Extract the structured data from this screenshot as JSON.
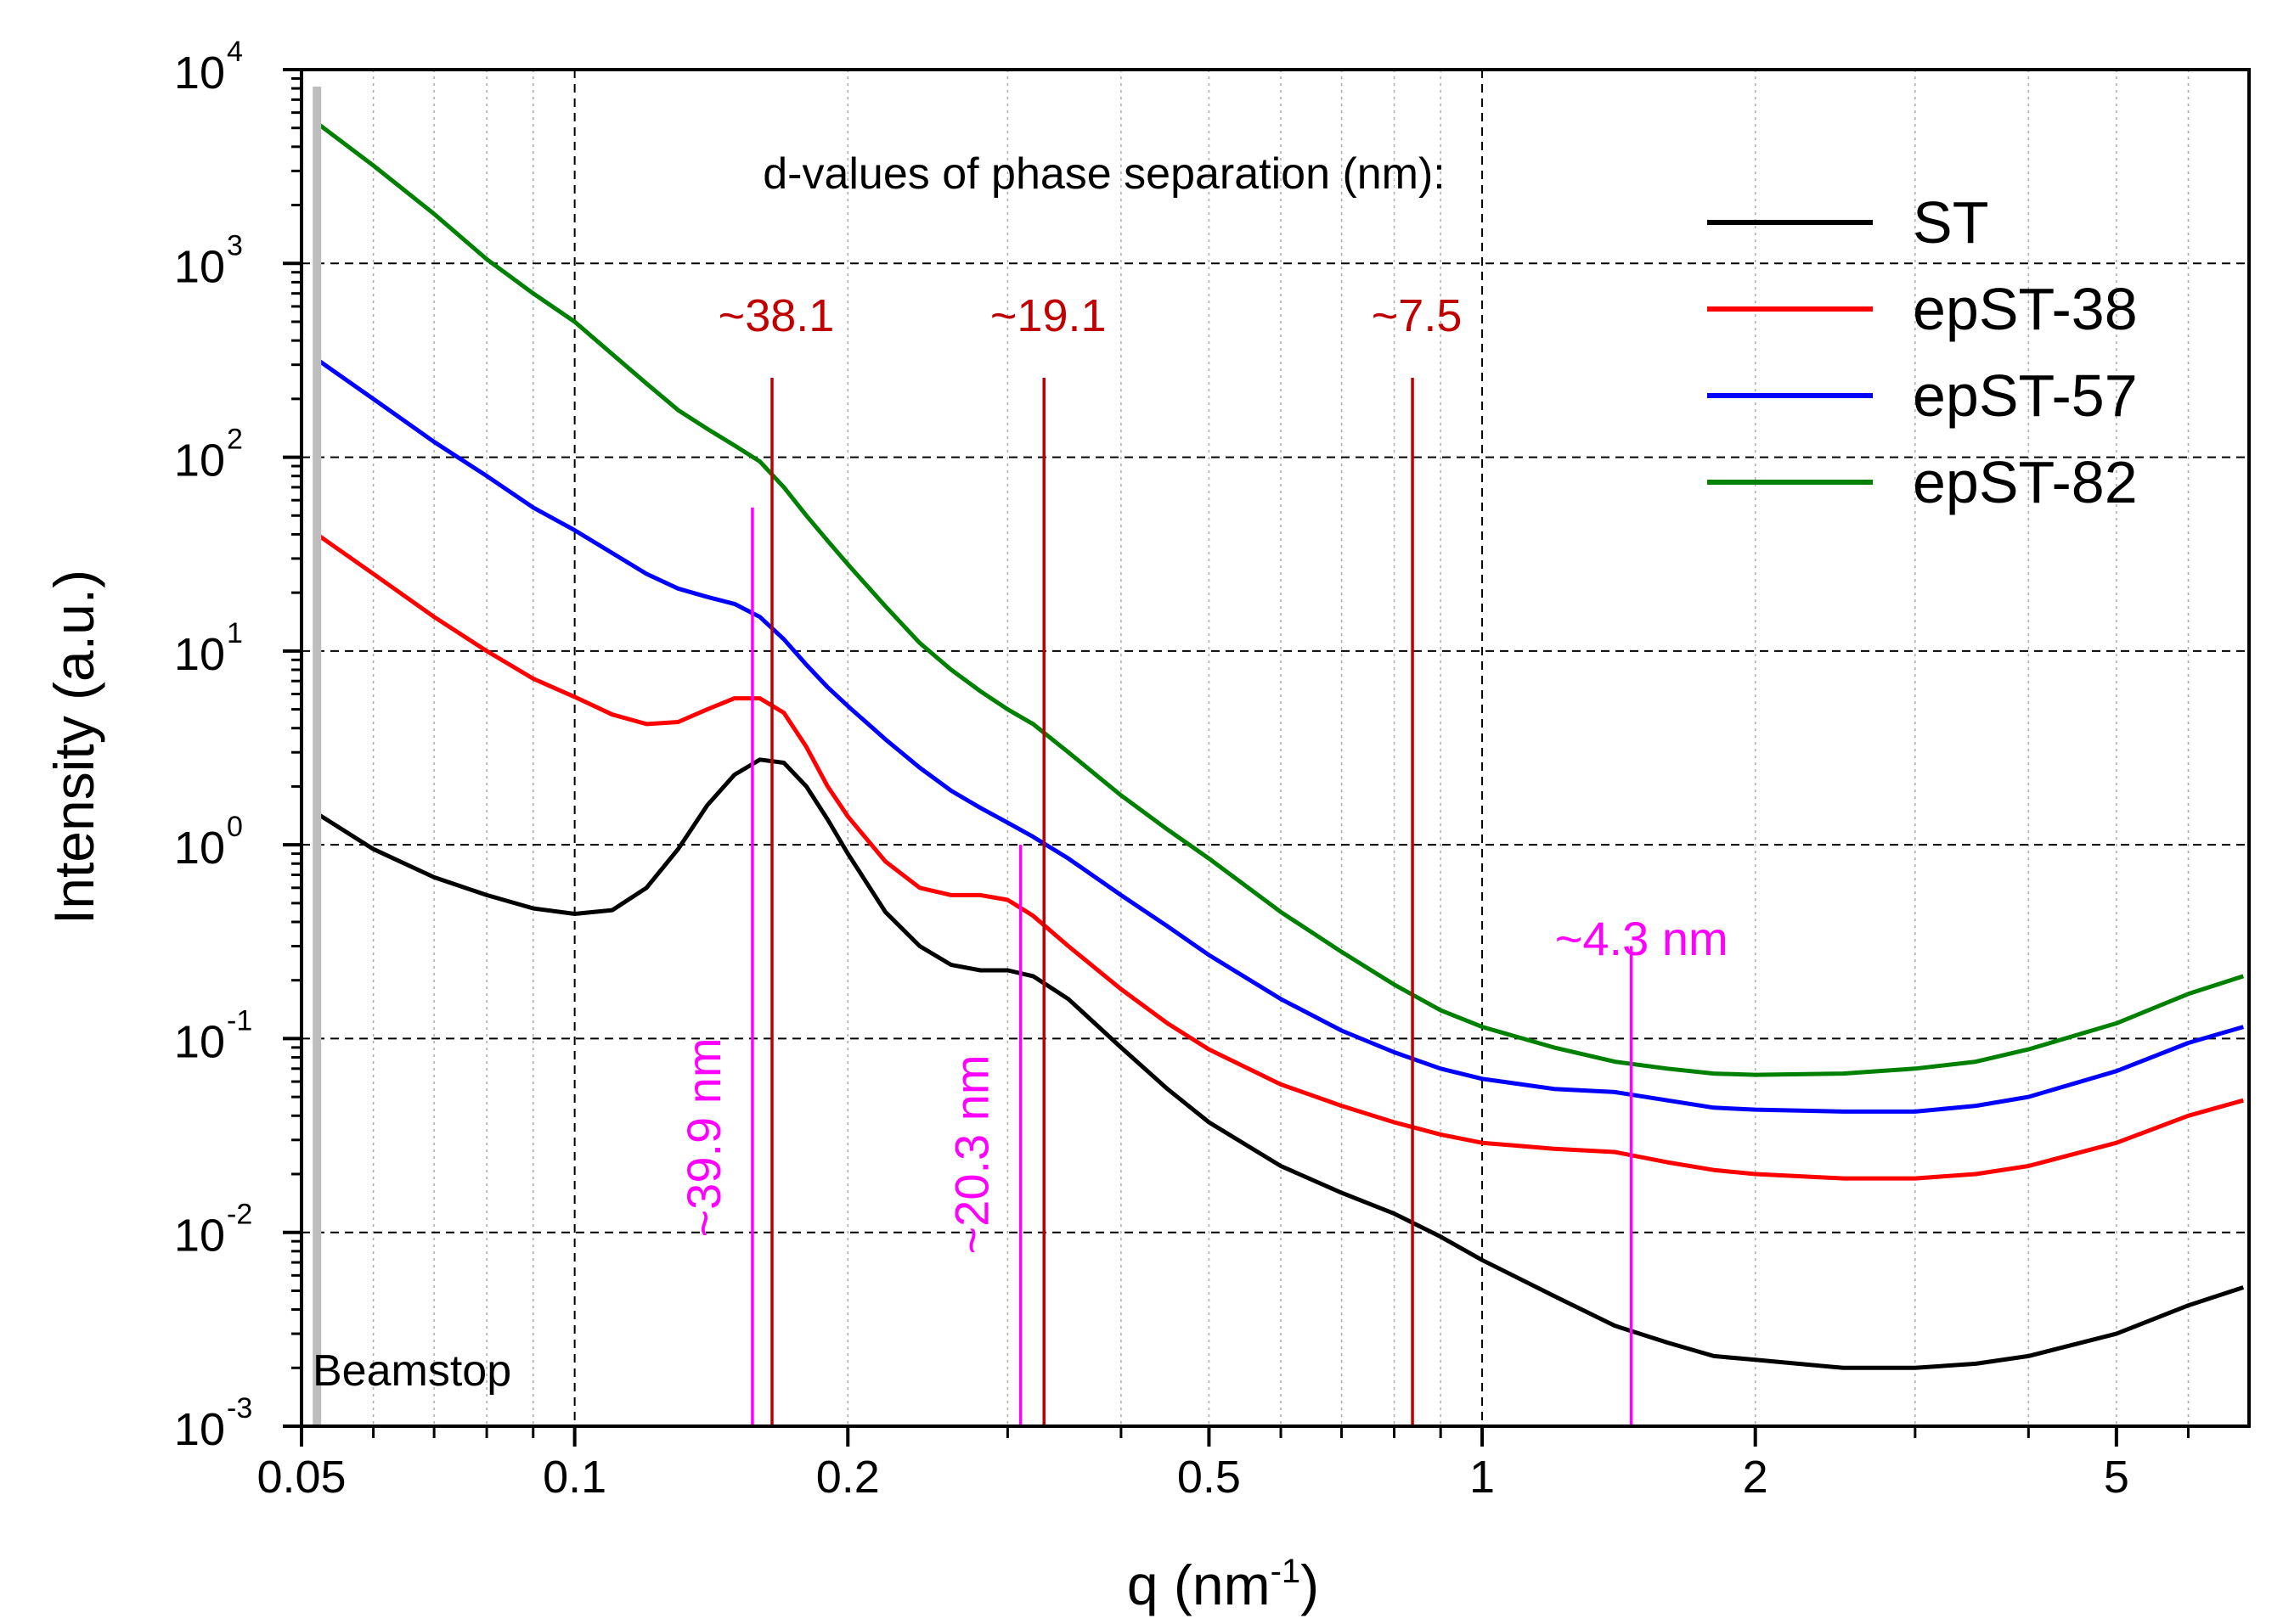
{
  "chart_data": {
    "type": "line",
    "xscale": "log",
    "yscale": "log",
    "xlim": [
      0.05,
      7.0
    ],
    "ylim": [
      0.001,
      10000
    ],
    "xlabel": "q (nm",
    "xlabel_sup": "-1",
    "xlabel_end": ")",
    "ylabel": "Intensity (a.u.)",
    "x_ticks": [
      {
        "value": 0.05,
        "label": "0.05"
      },
      {
        "value": 0.1,
        "label": "0.1"
      },
      {
        "value": 0.2,
        "label": "0.2"
      },
      {
        "value": 0.5,
        "label": "0.5"
      },
      {
        "value": 1,
        "label": "1"
      },
      {
        "value": 2,
        "label": "2"
      },
      {
        "value": 5,
        "label": "5"
      }
    ],
    "y_ticks": [
      {
        "value": 10000,
        "base": "10",
        "exp": "4"
      },
      {
        "value": 1000,
        "base": "10",
        "exp": "3"
      },
      {
        "value": 100,
        "base": "10",
        "exp": "2"
      },
      {
        "value": 10,
        "base": "10",
        "exp": "1"
      },
      {
        "value": 1,
        "base": "10",
        "exp": "0"
      },
      {
        "value": 0.1,
        "base": "10",
        "exp": "-1"
      },
      {
        "value": 0.01,
        "base": "10",
        "exp": "-2"
      },
      {
        "value": 0.001,
        "base": "10",
        "exp": "-3"
      }
    ],
    "grid": true,
    "legend_position": "top-right",
    "series": [
      {
        "name": "ST",
        "color": "#000000",
        "points": [
          [
            0.052,
            1.45
          ],
          [
            0.06,
            0.95
          ],
          [
            0.07,
            0.68
          ],
          [
            0.08,
            0.55
          ],
          [
            0.09,
            0.47
          ],
          [
            0.1,
            0.44
          ],
          [
            0.11,
            0.46
          ],
          [
            0.12,
            0.6
          ],
          [
            0.13,
            0.95
          ],
          [
            0.14,
            1.6
          ],
          [
            0.15,
            2.3
          ],
          [
            0.16,
            2.75
          ],
          [
            0.17,
            2.65
          ],
          [
            0.18,
            2.0
          ],
          [
            0.19,
            1.35
          ],
          [
            0.2,
            0.9
          ],
          [
            0.22,
            0.45
          ],
          [
            0.24,
            0.3
          ],
          [
            0.26,
            0.24
          ],
          [
            0.28,
            0.225
          ],
          [
            0.3,
            0.225
          ],
          [
            0.32,
            0.21
          ],
          [
            0.35,
            0.16
          ],
          [
            0.4,
            0.09
          ],
          [
            0.45,
            0.055
          ],
          [
            0.5,
            0.037
          ],
          [
            0.6,
            0.022
          ],
          [
            0.7,
            0.016
          ],
          [
            0.8,
            0.0125
          ],
          [
            0.9,
            0.0095
          ],
          [
            1.0,
            0.0072
          ],
          [
            1.2,
            0.0047
          ],
          [
            1.4,
            0.0033
          ],
          [
            1.6,
            0.0027
          ],
          [
            1.8,
            0.0023
          ],
          [
            2.0,
            0.0022
          ],
          [
            2.5,
            0.002
          ],
          [
            3.0,
            0.002
          ],
          [
            3.5,
            0.0021
          ],
          [
            4.0,
            0.0023
          ],
          [
            5.0,
            0.003
          ],
          [
            6.0,
            0.0042
          ],
          [
            6.9,
            0.0052
          ]
        ]
      },
      {
        "name": "epST-38",
        "color": "#ff0000",
        "points": [
          [
            0.052,
            40
          ],
          [
            0.06,
            25
          ],
          [
            0.07,
            15
          ],
          [
            0.08,
            10
          ],
          [
            0.09,
            7.2
          ],
          [
            0.1,
            5.8
          ],
          [
            0.11,
            4.7
          ],
          [
            0.12,
            4.2
          ],
          [
            0.13,
            4.3
          ],
          [
            0.14,
            5.0
          ],
          [
            0.15,
            5.7
          ],
          [
            0.16,
            5.7
          ],
          [
            0.17,
            4.8
          ],
          [
            0.18,
            3.2
          ],
          [
            0.19,
            2.0
          ],
          [
            0.2,
            1.4
          ],
          [
            0.22,
            0.82
          ],
          [
            0.24,
            0.6
          ],
          [
            0.26,
            0.55
          ],
          [
            0.28,
            0.55
          ],
          [
            0.3,
            0.52
          ],
          [
            0.32,
            0.43
          ],
          [
            0.35,
            0.3
          ],
          [
            0.4,
            0.18
          ],
          [
            0.45,
            0.12
          ],
          [
            0.5,
            0.088
          ],
          [
            0.6,
            0.058
          ],
          [
            0.7,
            0.045
          ],
          [
            0.8,
            0.037
          ],
          [
            0.9,
            0.032
          ],
          [
            1.0,
            0.029
          ],
          [
            1.2,
            0.027
          ],
          [
            1.4,
            0.026
          ],
          [
            1.6,
            0.023
          ],
          [
            1.8,
            0.021
          ],
          [
            2.0,
            0.02
          ],
          [
            2.5,
            0.019
          ],
          [
            3.0,
            0.019
          ],
          [
            3.5,
            0.02
          ],
          [
            4.0,
            0.022
          ],
          [
            5.0,
            0.029
          ],
          [
            6.0,
            0.04
          ],
          [
            6.9,
            0.048
          ]
        ]
      },
      {
        "name": "epST-57",
        "color": "#0000ff",
        "points": [
          [
            0.052,
            320
          ],
          [
            0.06,
            200
          ],
          [
            0.07,
            120
          ],
          [
            0.08,
            80
          ],
          [
            0.09,
            55
          ],
          [
            0.1,
            42
          ],
          [
            0.11,
            32
          ],
          [
            0.12,
            25
          ],
          [
            0.13,
            21
          ],
          [
            0.14,
            19
          ],
          [
            0.15,
            17.5
          ],
          [
            0.16,
            15
          ],
          [
            0.17,
            11.5
          ],
          [
            0.18,
            8.5
          ],
          [
            0.19,
            6.5
          ],
          [
            0.2,
            5.2
          ],
          [
            0.22,
            3.5
          ],
          [
            0.24,
            2.5
          ],
          [
            0.26,
            1.9
          ],
          [
            0.28,
            1.55
          ],
          [
            0.3,
            1.3
          ],
          [
            0.32,
            1.1
          ],
          [
            0.35,
            0.85
          ],
          [
            0.4,
            0.55
          ],
          [
            0.45,
            0.38
          ],
          [
            0.5,
            0.27
          ],
          [
            0.6,
            0.16
          ],
          [
            0.7,
            0.11
          ],
          [
            0.8,
            0.085
          ],
          [
            0.9,
            0.07
          ],
          [
            1.0,
            0.062
          ],
          [
            1.2,
            0.055
          ],
          [
            1.4,
            0.053
          ],
          [
            1.6,
            0.048
          ],
          [
            1.8,
            0.044
          ],
          [
            2.0,
            0.043
          ],
          [
            2.5,
            0.042
          ],
          [
            3.0,
            0.042
          ],
          [
            3.5,
            0.045
          ],
          [
            4.0,
            0.05
          ],
          [
            5.0,
            0.068
          ],
          [
            6.0,
            0.095
          ],
          [
            6.9,
            0.115
          ]
        ]
      },
      {
        "name": "epST-82",
        "color": "#008000",
        "points": [
          [
            0.052,
            5300
          ],
          [
            0.06,
            3200
          ],
          [
            0.07,
            1800
          ],
          [
            0.08,
            1050
          ],
          [
            0.09,
            700
          ],
          [
            0.1,
            500
          ],
          [
            0.11,
            340
          ],
          [
            0.12,
            240
          ],
          [
            0.13,
            175
          ],
          [
            0.14,
            140
          ],
          [
            0.15,
            115
          ],
          [
            0.16,
            95
          ],
          [
            0.17,
            70
          ],
          [
            0.18,
            50
          ],
          [
            0.19,
            37
          ],
          [
            0.2,
            28
          ],
          [
            0.22,
            17
          ],
          [
            0.24,
            11
          ],
          [
            0.26,
            8
          ],
          [
            0.28,
            6.2
          ],
          [
            0.3,
            5.0
          ],
          [
            0.32,
            4.2
          ],
          [
            0.35,
            3.0
          ],
          [
            0.4,
            1.8
          ],
          [
            0.45,
            1.2
          ],
          [
            0.5,
            0.85
          ],
          [
            0.6,
            0.45
          ],
          [
            0.7,
            0.28
          ],
          [
            0.8,
            0.19
          ],
          [
            0.9,
            0.14
          ],
          [
            1.0,
            0.115
          ],
          [
            1.2,
            0.09
          ],
          [
            1.4,
            0.076
          ],
          [
            1.6,
            0.07
          ],
          [
            1.8,
            0.066
          ],
          [
            2.0,
            0.065
          ],
          [
            2.5,
            0.066
          ],
          [
            3.0,
            0.07
          ],
          [
            3.5,
            0.076
          ],
          [
            4.0,
            0.088
          ],
          [
            5.0,
            0.12
          ],
          [
            6.0,
            0.17
          ],
          [
            6.9,
            0.21
          ]
        ]
      }
    ],
    "annotations": {
      "heading": "d-values of phase separation (nm):",
      "beamstop_label": "Beamstop",
      "beamstop_q": 0.052,
      "d_value_lines": [
        {
          "q": 0.165,
          "label": "~38.1"
        },
        {
          "q": 0.329,
          "label": "~19.1"
        },
        {
          "q": 0.838,
          "label": "~7.5"
        }
      ],
      "d_value_color": "#c00000",
      "vertical_markers": [
        {
          "q": 0.157,
          "label": "~39.9 nm",
          "top_y": 55
        },
        {
          "q": 0.31,
          "label": "~20.3 nm",
          "top_y": 1.0
        },
        {
          "q": 1.46,
          "label": "~4.3 nm",
          "top_y": 0.3
        }
      ],
      "marker_color": "#ff00ff"
    }
  }
}
